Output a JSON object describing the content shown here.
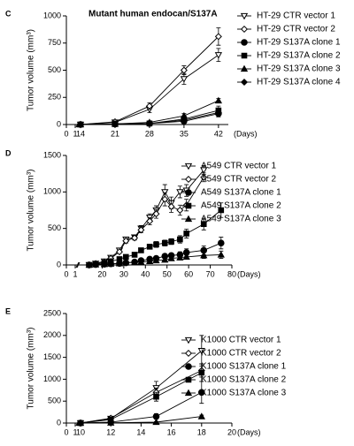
{
  "chart_data": [
    {
      "type": "line",
      "panel_label": "C",
      "title": "Mutant human endocan/S137A",
      "y_label": "Tumor volume (mm³)",
      "x_label": "(Days)",
      "xlim": [
        0,
        44
      ],
      "x_axis_break": [
        1,
        14
      ],
      "xticks": [
        0,
        1,
        14,
        21,
        28,
        35,
        42
      ],
      "ylim": [
        0,
        1000
      ],
      "yticks": [
        0,
        250,
        500,
        750,
        1000
      ],
      "color": "#000000",
      "legend": "right",
      "series": [
        {
          "name": "HT-29 CTR vector 1",
          "marker": "triangle-down-open",
          "x": [
            14,
            21,
            28,
            35,
            42
          ],
          "values": [
            0,
            20,
            140,
            420,
            640
          ],
          "errors": [
            5,
            10,
            30,
            50,
            60
          ]
        },
        {
          "name": "HT-29 CTR vector 2",
          "marker": "diamond-open",
          "x": [
            14,
            21,
            28,
            35,
            42
          ],
          "values": [
            0,
            25,
            170,
            500,
            810
          ],
          "errors": [
            5,
            10,
            30,
            40,
            80
          ]
        },
        {
          "name": "HT-29 S137A clone 1",
          "marker": "circle",
          "x": [
            14,
            21,
            28,
            35,
            42
          ],
          "values": [
            0,
            5,
            10,
            30,
            100
          ],
          "errors": [
            2,
            3,
            5,
            15,
            30
          ]
        },
        {
          "name": "HT-29 S137A clone 2",
          "marker": "square",
          "x": [
            14,
            21,
            28,
            35,
            42
          ],
          "values": [
            0,
            5,
            10,
            50,
            130
          ],
          "errors": [
            2,
            3,
            5,
            20,
            40
          ]
        },
        {
          "name": "HT-29 S137A clone 3",
          "marker": "triangle",
          "x": [
            14,
            21,
            28,
            35,
            42
          ],
          "values": [
            0,
            5,
            20,
            80,
            220
          ],
          "errors": [
            2,
            3,
            8,
            20,
            20
          ]
        },
        {
          "name": "HT-29 S137A clone 4",
          "marker": "diamond",
          "x": [
            14,
            21,
            28,
            35,
            42
          ],
          "values": [
            0,
            5,
            10,
            40,
            110
          ],
          "errors": [
            2,
            3,
            5,
            15,
            30
          ]
        }
      ]
    },
    {
      "type": "line",
      "panel_label": "D",
      "y_label": "Tumor volume (mm³)",
      "x_label": "(Days)",
      "xlim": [
        0,
        80
      ],
      "x_axis_break": [
        1,
        10
      ],
      "xticks": [
        0,
        1,
        20,
        30,
        40,
        50,
        60,
        70,
        80
      ],
      "ylim": [
        0,
        1500
      ],
      "yticks": [
        0,
        500,
        1000,
        1500
      ],
      "color": "#000000",
      "legend": "right",
      "series": [
        {
          "name": "A549 CTR vector 1",
          "marker": "triangle-down-open",
          "x": [
            14,
            17,
            21,
            24,
            28,
            31,
            35,
            38,
            42,
            45,
            49,
            52,
            56,
            59,
            67
          ],
          "values": [
            0,
            20,
            50,
            100,
            200,
            350,
            380,
            500,
            650,
            750,
            1000,
            850,
            1000,
            1020,
            1300
          ],
          "errors": [
            5,
            5,
            10,
            15,
            20,
            30,
            30,
            40,
            50,
            60,
            100,
            80,
            80,
            80,
            60
          ]
        },
        {
          "name": "A549 CTR vector 2",
          "marker": "diamond-open",
          "x": [
            14,
            17,
            21,
            24,
            28,
            31,
            35,
            38,
            42,
            45,
            49,
            52,
            56,
            59,
            67
          ],
          "values": [
            0,
            20,
            40,
            90,
            180,
            330,
            370,
            480,
            600,
            700,
            900,
            800,
            750,
            820,
            1200
          ],
          "errors": [
            5,
            5,
            10,
            15,
            20,
            30,
            30,
            40,
            50,
            60,
            90,
            80,
            70,
            80,
            60
          ]
        },
        {
          "name": "A549 S137A clone 1",
          "marker": "circle",
          "x": [
            14,
            17,
            21,
            24,
            28,
            31,
            35,
            38,
            42,
            45,
            49,
            52,
            56,
            59,
            67,
            75
          ],
          "values": [
            0,
            5,
            10,
            15,
            20,
            30,
            40,
            60,
            80,
            90,
            120,
            130,
            140,
            170,
            200,
            300
          ],
          "errors": [
            2,
            2,
            3,
            5,
            5,
            8,
            10,
            15,
            20,
            20,
            30,
            30,
            40,
            50,
            60,
            80
          ]
        },
        {
          "name": "A549 S137A clone 2",
          "marker": "square",
          "x": [
            14,
            17,
            21,
            24,
            28,
            31,
            35,
            38,
            42,
            45,
            49,
            52,
            56,
            59,
            67,
            75
          ],
          "values": [
            0,
            10,
            30,
            50,
            80,
            110,
            140,
            200,
            250,
            280,
            300,
            320,
            350,
            430,
            560,
            750
          ],
          "errors": [
            2,
            3,
            5,
            10,
            15,
            20,
            20,
            30,
            30,
            40,
            40,
            40,
            50,
            60,
            80,
            100
          ]
        },
        {
          "name": "A549 S137A clone 3",
          "marker": "triangle",
          "x": [
            14,
            17,
            21,
            24,
            28,
            31,
            35,
            38,
            42,
            45,
            49,
            52,
            56,
            59,
            67,
            75
          ],
          "values": [
            0,
            5,
            10,
            15,
            20,
            30,
            35,
            40,
            50,
            60,
            70,
            90,
            100,
            110,
            130,
            140
          ],
          "errors": [
            2,
            2,
            3,
            5,
            5,
            8,
            10,
            10,
            15,
            15,
            20,
            20,
            30,
            30,
            40,
            50
          ]
        }
      ]
    },
    {
      "type": "line",
      "panel_label": "E",
      "y_label": "Tumor volume (mm³)",
      "x_label": "(Days)",
      "xlim": [
        0,
        20
      ],
      "x_axis_break": [
        1,
        10
      ],
      "xticks": [
        0,
        1,
        10,
        12,
        14,
        16,
        18,
        20
      ],
      "ylim": [
        0,
        2500
      ],
      "yticks": [
        0,
        500,
        1000,
        1500,
        2000,
        2500
      ],
      "color": "#000000",
      "legend": "right",
      "series": [
        {
          "name": "K1000 CTR vector 1",
          "marker": "triangle-down-open",
          "x": [
            10,
            12,
            15,
            18
          ],
          "values": [
            0,
            100,
            800,
            1650
          ],
          "errors": [
            5,
            30,
            150,
            350
          ]
        },
        {
          "name": "K1000 CTR vector 2",
          "marker": "diamond-open",
          "x": [
            10,
            12,
            15,
            18
          ],
          "values": [
            0,
            110,
            700,
            1200
          ],
          "errors": [
            5,
            30,
            100,
            150
          ]
        },
        {
          "name": "K1000 S137A clone 1",
          "marker": "circle",
          "x": [
            10,
            12,
            15,
            18
          ],
          "values": [
            0,
            20,
            150,
            700
          ],
          "errors": [
            5,
            10,
            60,
            250
          ]
        },
        {
          "name": "K1000 S137A clone 2",
          "marker": "square",
          "x": [
            10,
            12,
            15,
            18
          ],
          "values": [
            0,
            80,
            600,
            1150
          ],
          "errors": [
            5,
            20,
            100,
            200
          ]
        },
        {
          "name": "K1000 S137A clone 3",
          "marker": "triangle",
          "x": [
            10,
            12,
            15,
            18
          ],
          "values": [
            0,
            5,
            20,
            150
          ],
          "errors": [
            5,
            5,
            10,
            30
          ]
        }
      ]
    }
  ]
}
